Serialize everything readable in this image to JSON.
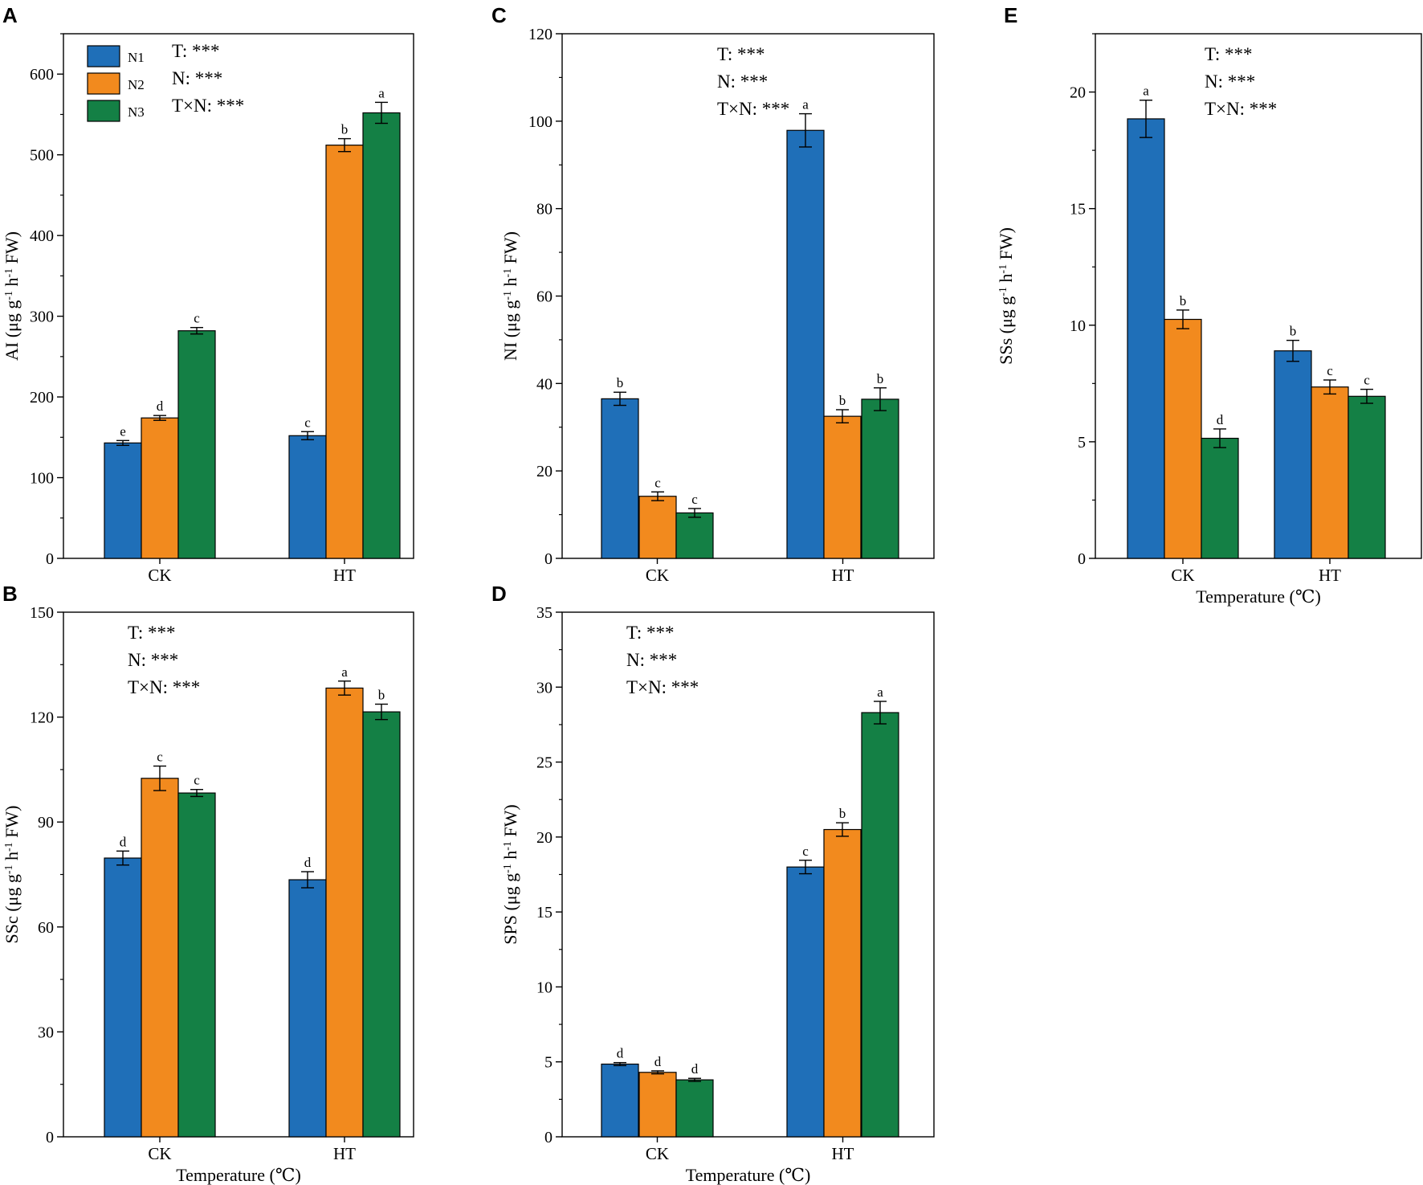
{
  "colors": {
    "N1": "#1f6fb8",
    "N2": "#f28a1e",
    "N3": "#148045"
  },
  "legend": {
    "entries": [
      {
        "name": "N1",
        "color": "#1f6fb8"
      },
      {
        "name": "N2",
        "color": "#f28a1e"
      },
      {
        "name": "N3",
        "color": "#148045"
      }
    ],
    "panel": "A"
  },
  "chart_data": [
    {
      "panel": "A",
      "type": "bar",
      "categories": [
        "CK",
        "HT"
      ],
      "ylabel_parts": [
        "AI (μg g",
        "-1",
        " h",
        "-1",
        " FW)"
      ],
      "xlabel": "",
      "ylim": [
        0,
        650
      ],
      "yticks": [
        0,
        100,
        200,
        300,
        400,
        500,
        600
      ],
      "stats": [
        "T: ***",
        "N: ***",
        "T×N: ***"
      ],
      "stats_position": "top-left",
      "series": [
        {
          "name": "N1",
          "values": [
            143,
            152
          ],
          "errors": [
            3,
            5
          ],
          "letters": [
            "e",
            "c"
          ]
        },
        {
          "name": "N2",
          "values": [
            174,
            512
          ],
          "errors": [
            3,
            8
          ],
          "letters": [
            "d",
            "b"
          ]
        },
        {
          "name": "N3",
          "values": [
            282,
            552
          ],
          "errors": [
            4,
            13
          ],
          "letters": [
            "c",
            "a"
          ]
        }
      ]
    },
    {
      "panel": "B",
      "type": "bar",
      "categories": [
        "CK",
        "HT"
      ],
      "ylabel_parts": [
        "SSc (μg g",
        "-1",
        " h",
        "-1",
        " FW)"
      ],
      "xlabel": "Temperature (℃)",
      "ylim": [
        0,
        150
      ],
      "yticks": [
        0,
        30,
        60,
        90,
        120,
        150
      ],
      "stats": [
        "T: ***",
        "N: ***",
        "T×N: ***"
      ],
      "stats_position": "top-left",
      "series": [
        {
          "name": "N1",
          "values": [
            79.7,
            73.5
          ],
          "errors": [
            2.0,
            2.3
          ],
          "letters": [
            "d",
            "d"
          ]
        },
        {
          "name": "N2",
          "values": [
            102.5,
            128.3
          ],
          "errors": [
            3.5,
            2.0
          ],
          "letters": [
            "c",
            "a"
          ]
        },
        {
          "name": "N3",
          "values": [
            98.3,
            121.5
          ],
          "errors": [
            1.0,
            2.2
          ],
          "letters": [
            "c",
            "b"
          ]
        }
      ]
    },
    {
      "panel": "C",
      "type": "bar",
      "categories": [
        "CK",
        "HT"
      ],
      "ylabel_parts": [
        "NI (μg g",
        "-1",
        " h",
        "-1",
        " FW)"
      ],
      "xlabel": "",
      "ylim": [
        0,
        120
      ],
      "yticks": [
        0,
        20,
        40,
        60,
        80,
        100,
        120
      ],
      "stats": [
        "T: ***",
        "N: ***",
        "T×N: ***"
      ],
      "stats_position": "top-right",
      "series": [
        {
          "name": "N1",
          "values": [
            36.5,
            97.9
          ],
          "errors": [
            1.5,
            3.8
          ],
          "letters": [
            "b",
            "a"
          ]
        },
        {
          "name": "N2",
          "values": [
            14.2,
            32.5
          ],
          "errors": [
            1.0,
            1.5
          ],
          "letters": [
            "c",
            "b"
          ]
        },
        {
          "name": "N3",
          "values": [
            10.4,
            36.4
          ],
          "errors": [
            1.0,
            2.6
          ],
          "letters": [
            "c",
            "b"
          ]
        }
      ]
    },
    {
      "panel": "D",
      "type": "bar",
      "categories": [
        "CK",
        "HT"
      ],
      "ylabel_parts": [
        "SPS (μg g",
        "-1",
        " h",
        "-1",
        " FW)"
      ],
      "xlabel": "Temperature (℃)",
      "ylim": [
        0,
        35
      ],
      "yticks": [
        0,
        5,
        10,
        15,
        20,
        25,
        30,
        35
      ],
      "stats": [
        "T: ***",
        "N: ***",
        "T×N: ***"
      ],
      "stats_position": "top-left",
      "series": [
        {
          "name": "N1",
          "values": [
            4.85,
            18.0
          ],
          "errors": [
            0.1,
            0.45
          ],
          "letters": [
            "d",
            "c"
          ]
        },
        {
          "name": "N2",
          "values": [
            4.3,
            20.5
          ],
          "errors": [
            0.1,
            0.45
          ],
          "letters": [
            "d",
            "b"
          ]
        },
        {
          "name": "N3",
          "values": [
            3.8,
            28.3
          ],
          "errors": [
            0.1,
            0.75
          ],
          "letters": [
            "d",
            "a"
          ]
        }
      ]
    },
    {
      "panel": "E",
      "type": "bar",
      "categories": [
        "CK",
        "HT"
      ],
      "ylabel_parts": [
        "SSs (μg g",
        "-1",
        " h",
        "-1",
        " FW)"
      ],
      "xlabel": "Temperature (℃)",
      "ylim": [
        0,
        22.5
      ],
      "yticks": [
        0,
        5,
        10,
        15,
        20
      ],
      "stats": [
        "T: ***",
        "N: ***",
        "T×N: ***"
      ],
      "stats_position": "top-right",
      "series": [
        {
          "name": "N1",
          "values": [
            18.85,
            8.9
          ],
          "errors": [
            0.8,
            0.45
          ],
          "letters": [
            "a",
            "b"
          ]
        },
        {
          "name": "N2",
          "values": [
            10.25,
            7.35
          ],
          "errors": [
            0.4,
            0.3
          ],
          "letters": [
            "b",
            "c"
          ]
        },
        {
          "name": "N3",
          "values": [
            5.15,
            6.95
          ],
          "errors": [
            0.4,
            0.3
          ],
          "letters": [
            "d",
            "c"
          ]
        }
      ]
    }
  ]
}
